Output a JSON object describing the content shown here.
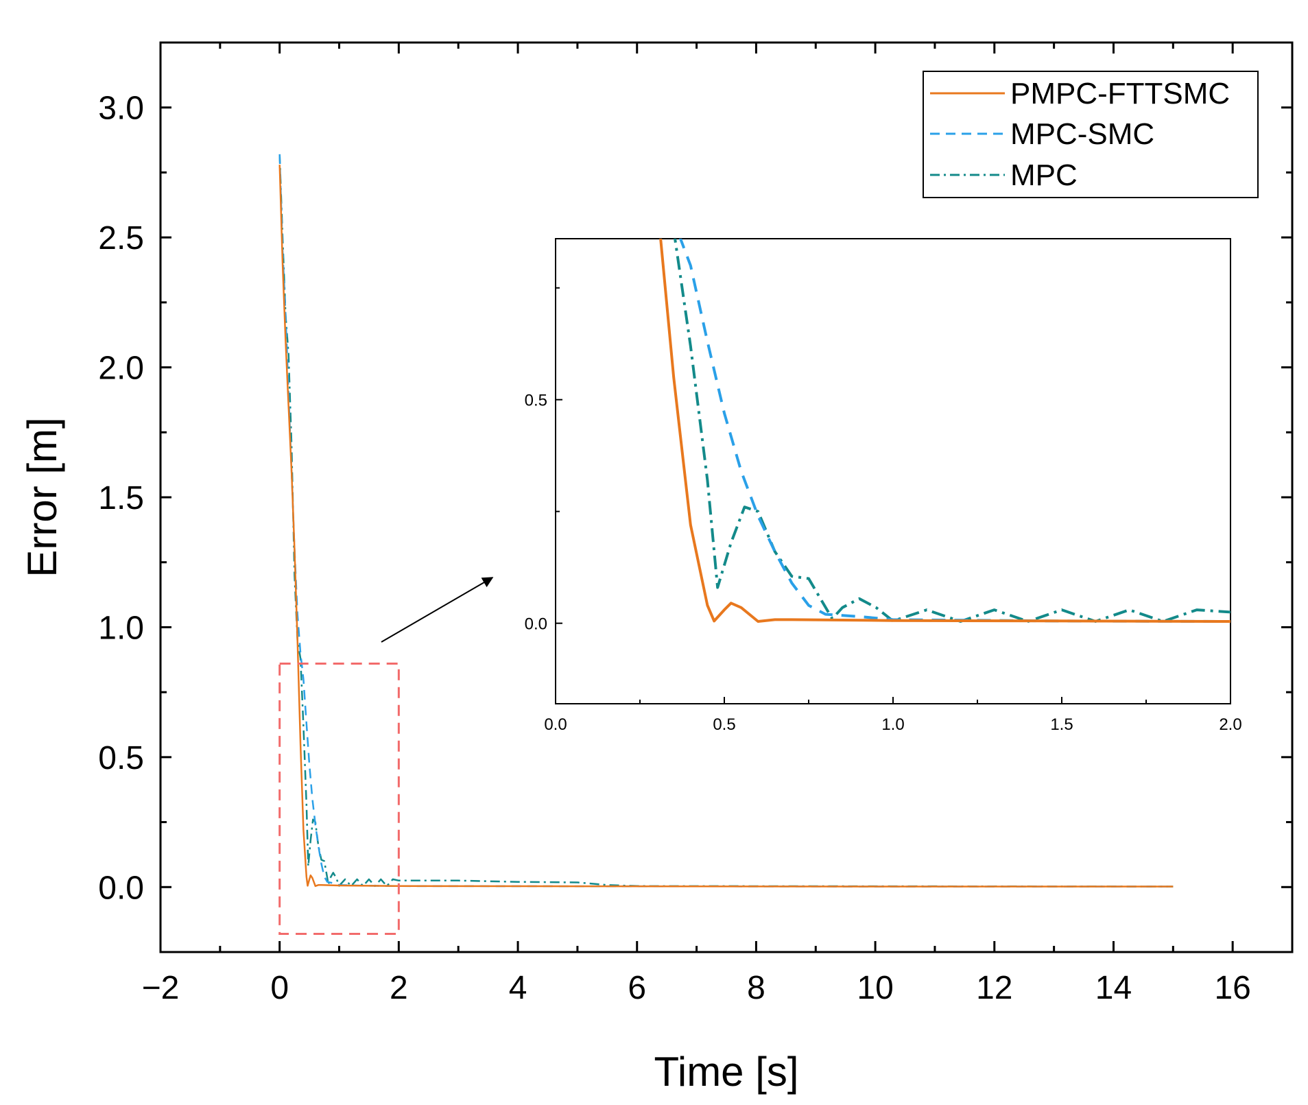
{
  "chart_data": [
    {
      "type": "line",
      "panel": "main",
      "xlabel": "Time [s]",
      "ylabel": "Error [m]",
      "xlim": [
        -2,
        17
      ],
      "ylim": [
        -0.25,
        3.25
      ],
      "xticks": [
        -2,
        0,
        2,
        4,
        6,
        8,
        10,
        12,
        14,
        16
      ],
      "xtick_labels": [
        "−2",
        "0",
        "2",
        "4",
        "6",
        "8",
        "10",
        "12",
        "14",
        "16"
      ],
      "yticks": [
        0.0,
        0.5,
        1.0,
        1.5,
        2.0,
        2.5,
        3.0
      ],
      "ytick_labels": [
        "0.0",
        "0.5",
        "1.0",
        "1.5",
        "2.0",
        "2.5",
        "3.0"
      ],
      "legend_position": "top-right",
      "zoom_region": {
        "x": [
          0,
          2
        ],
        "y": [
          -0.18,
          0.86
        ]
      },
      "series": [
        {
          "name": "PMPC-FTTSMC",
          "color": "#e8781e",
          "dash": "solid",
          "x": [
            0.0,
            0.05,
            0.1,
            0.15,
            0.2,
            0.25,
            0.3,
            0.35,
            0.4,
            0.45,
            0.47,
            0.5,
            0.52,
            0.55,
            0.6,
            0.65,
            0.7,
            1.0,
            2.0,
            5.0,
            10.0,
            15.0
          ],
          "y": [
            2.78,
            2.4,
            2.1,
            1.85,
            1.6,
            1.3,
            0.95,
            0.55,
            0.22,
            0.04,
            0.005,
            0.03,
            0.045,
            0.035,
            0.004,
            0.008,
            0.008,
            0.006,
            0.004,
            0.003,
            0.002,
            0.002
          ]
        },
        {
          "name": "MPC-SMC",
          "color": "#2aa0e8",
          "dash": "dashed",
          "x": [
            0.0,
            0.05,
            0.1,
            0.15,
            0.2,
            0.25,
            0.3,
            0.35,
            0.4,
            0.45,
            0.5,
            0.55,
            0.6,
            0.65,
            0.7,
            0.75,
            0.8,
            0.9,
            1.0,
            1.5,
            2.0,
            5.0,
            10.0,
            15.0
          ],
          "y": [
            2.82,
            2.45,
            2.2,
            1.9,
            1.6,
            1.3,
            1.05,
            0.9,
            0.8,
            0.63,
            0.47,
            0.34,
            0.24,
            0.16,
            0.09,
            0.04,
            0.02,
            0.015,
            0.008,
            0.005,
            0.004,
            0.003,
            0.002,
            0.002
          ]
        },
        {
          "name": "MPC",
          "color": "#138a8a",
          "dash": "dashdot",
          "x": [
            0.0,
            0.05,
            0.1,
            0.15,
            0.2,
            0.25,
            0.3,
            0.35,
            0.4,
            0.45,
            0.48,
            0.52,
            0.56,
            0.6,
            0.65,
            0.7,
            0.75,
            0.82,
            0.85,
            0.9,
            0.95,
            1.0,
            1.1,
            1.2,
            1.3,
            1.4,
            1.5,
            1.6,
            1.7,
            1.8,
            1.9,
            2.0,
            3.0,
            4.0,
            5.0,
            5.5,
            6.0,
            10.0,
            15.0
          ],
          "y": [
            2.82,
            2.5,
            2.2,
            2.05,
            1.7,
            1.2,
            0.95,
            0.88,
            0.62,
            0.32,
            0.08,
            0.18,
            0.26,
            0.25,
            0.16,
            0.105,
            0.1,
            0.01,
            0.035,
            0.055,
            0.035,
            0.005,
            0.03,
            0.004,
            0.03,
            0.004,
            0.03,
            0.004,
            0.03,
            0.004,
            0.03,
            0.025,
            0.025,
            0.02,
            0.018,
            0.008,
            0.004,
            0.003,
            0.002
          ]
        }
      ]
    },
    {
      "type": "line",
      "panel": "inset",
      "xlim": [
        0,
        2
      ],
      "ylim": [
        -0.18,
        0.86
      ],
      "xticks": [
        0.0,
        0.5,
        1.0,
        1.5,
        2.0
      ],
      "xtick_labels": [
        "0.0",
        "0.5",
        "1.0",
        "1.5",
        "2.0"
      ],
      "yticks": [
        0.0,
        0.5
      ],
      "ytick_labels": [
        "0.0",
        "0.5"
      ],
      "series_ref": "main"
    }
  ]
}
